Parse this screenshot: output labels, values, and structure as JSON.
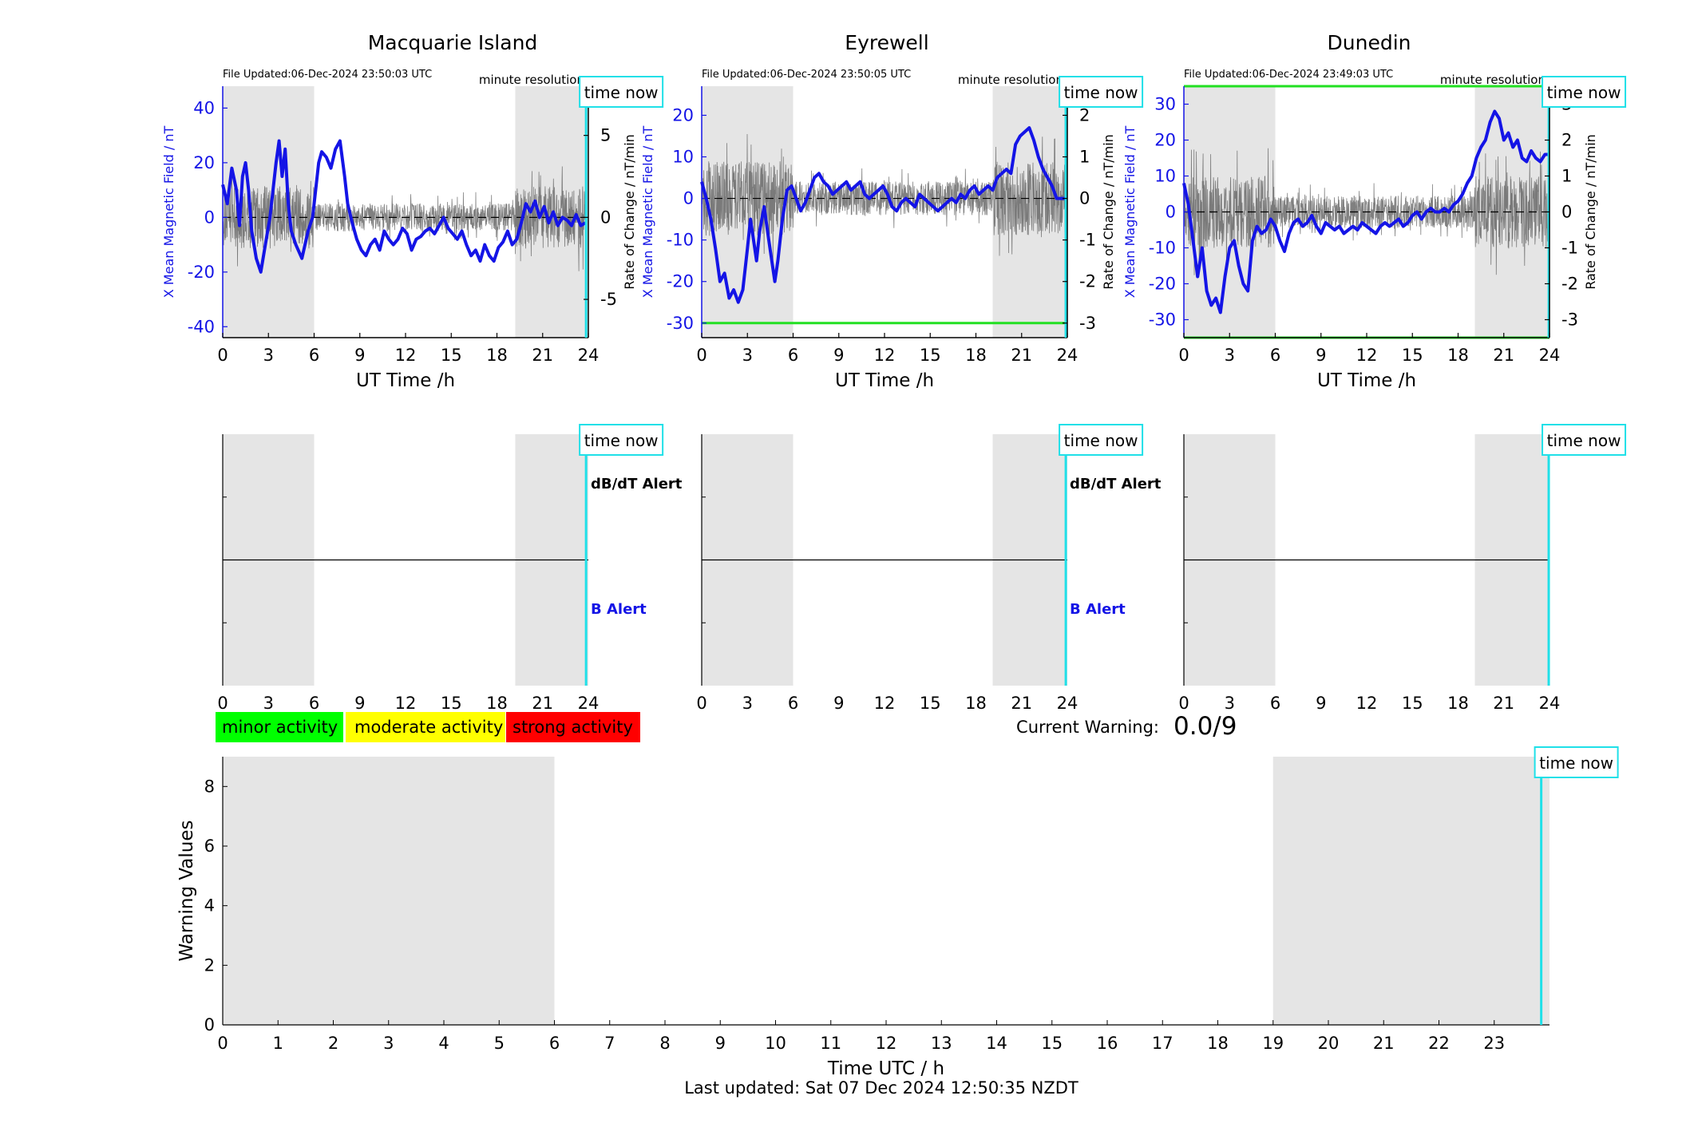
{
  "colors": {
    "field": "#1414e6",
    "rate": "#555555",
    "night": "#e5e5e5",
    "timenow": "#1fe0e8",
    "threshold": "#22e022",
    "minor": "#00ff00",
    "moderate": "#ffff00",
    "strong": "#ff0000",
    "b_alert": "#1414e6"
  },
  "common": {
    "xlabel": "UT Time /h",
    "ylabel_left": "X Mean Magnetic Field / nT",
    "ylabel_right": "Rate of Change / nT/min",
    "resolution": "minute resolution",
    "time_now": "time now",
    "dbdt_alert": "dB/dT Alert",
    "b_alert": "B Alert"
  },
  "stations": [
    {
      "title": "Macquarie Island",
      "file_updated": "File Updated:06-Dec-2024 23:50:03 UTC"
    },
    {
      "title": "Eyrewell",
      "file_updated": "File Updated:06-Dec-2024 23:50:05 UTC"
    },
    {
      "title": "Dunedin",
      "file_updated": "File Updated:06-Dec-2024 23:49:03 UTC"
    }
  ],
  "legend": {
    "minor": "minor activity",
    "moderate": "moderate activity",
    "strong": "strong activity"
  },
  "current_warning": {
    "label": "Current Warning:",
    "value": "0.0/9"
  },
  "footer": {
    "last_updated": "Last updated: Sat 07 Dec 2024 12:50:35 NZDT"
  },
  "chart_data": [
    {
      "type": "line",
      "title": "Macquarie Island",
      "xlabel": "UT Time /h",
      "ylabel": "X Mean Magnetic Field / nT",
      "y2label": "Rate of Change / nT/min",
      "xlim": [
        0,
        24
      ],
      "ylim": [
        -44,
        48
      ],
      "y2lim": [
        -7.333,
        8
      ],
      "xticks": [
        0,
        3,
        6,
        9,
        12,
        15,
        18,
        21,
        24
      ],
      "yticks": [
        -40,
        -20,
        0,
        20,
        40
      ],
      "y2ticks": [
        -5,
        0,
        5
      ],
      "night_bands": [
        [
          0,
          6
        ],
        [
          19.2,
          24
        ]
      ],
      "time_now": 23.85,
      "series": [
        {
          "role": "field",
          "x": [
            0,
            0.3,
            0.6,
            0.9,
            1.1,
            1.3,
            1.5,
            1.7,
            1.9,
            2.2,
            2.5,
            2.8,
            3.1,
            3.3,
            3.5,
            3.7,
            3.9,
            4.1,
            4.3,
            4.5,
            4.8,
            5.2,
            5.6,
            5.9,
            6.1,
            6.3,
            6.5,
            6.8,
            7.1,
            7.4,
            7.7,
            8.0,
            8.2,
            8.5,
            8.8,
            9.1,
            9.4,
            9.7,
            10.0,
            10.3,
            10.6,
            10.9,
            11.2,
            11.5,
            11.8,
            12.1,
            12.4,
            12.7,
            13.0,
            13.3,
            13.6,
            13.9,
            14.2,
            14.5,
            14.8,
            15.1,
            15.4,
            15.7,
            16.0,
            16.3,
            16.6,
            16.9,
            17.2,
            17.5,
            17.8,
            18.1,
            18.4,
            18.7,
            19.0,
            19.3,
            19.6,
            19.9,
            20.2,
            20.5,
            20.8,
            21.1,
            21.4,
            21.7,
            22.0,
            22.3,
            22.6,
            22.9,
            23.2,
            23.5,
            23.8
          ],
          "y": [
            12,
            5,
            18,
            10,
            -3,
            15,
            20,
            10,
            -5,
            -15,
            -20,
            -10,
            0,
            10,
            20,
            28,
            15,
            25,
            5,
            -5,
            -10,
            -15,
            -5,
            0,
            10,
            20,
            24,
            22,
            18,
            25,
            28,
            15,
            5,
            -2,
            -8,
            -12,
            -14,
            -10,
            -8,
            -12,
            -5,
            -8,
            -10,
            -8,
            -4,
            -6,
            -12,
            -8,
            -7,
            -5,
            -4,
            -6,
            -3,
            0,
            -4,
            -6,
            -8,
            -5,
            -10,
            -14,
            -12,
            -16,
            -10,
            -14,
            -16,
            -11,
            -9,
            -5,
            -10,
            -8,
            -2,
            5,
            2,
            6,
            0,
            4,
            -2,
            2,
            -3,
            0,
            -1,
            -3,
            1,
            -3,
            -2
          ]
        },
        {
          "role": "rate",
          "axis": "right",
          "x_range": [
            0,
            23.8
          ],
          "amplitude": 1.9
        }
      ]
    },
    {
      "type": "line",
      "title": "Eyrewell",
      "xlabel": "UT Time /h",
      "ylabel": "X Mean Magnetic Field / nT",
      "y2label": "Rate of Change / nT/min",
      "xlim": [
        0,
        24
      ],
      "ylim": [
        -33.5,
        27
      ],
      "y2lim": [
        -3.35,
        2.7
      ],
      "xticks": [
        0,
        3,
        6,
        9,
        12,
        15,
        18,
        21,
        24
      ],
      "yticks": [
        -30,
        -20,
        -10,
        0,
        10,
        20
      ],
      "y2ticks": [
        -3,
        -2,
        -1,
        0,
        1,
        2
      ],
      "threshold_lines": [
        -30
      ],
      "night_bands": [
        [
          0,
          6
        ],
        [
          19.1,
          24
        ]
      ],
      "time_now": 23.9,
      "series": [
        {
          "role": "field",
          "x": [
            0,
            0.3,
            0.6,
            0.9,
            1.2,
            1.5,
            1.8,
            2.1,
            2.4,
            2.7,
            3.0,
            3.2,
            3.4,
            3.6,
            3.8,
            4.1,
            4.4,
            4.6,
            4.8,
            5.0,
            5.3,
            5.6,
            5.9,
            6.2,
            6.5,
            6.8,
            7.1,
            7.4,
            7.7,
            8.0,
            8.3,
            8.6,
            8.9,
            9.2,
            9.5,
            9.8,
            10.1,
            10.4,
            10.7,
            11.0,
            11.3,
            11.6,
            11.9,
            12.2,
            12.5,
            12.8,
            13.1,
            13.4,
            13.7,
            14.0,
            14.3,
            14.6,
            14.9,
            15.2,
            15.5,
            15.8,
            16.1,
            16.4,
            16.7,
            17.0,
            17.3,
            17.6,
            17.9,
            18.2,
            18.5,
            18.8,
            19.1,
            19.4,
            19.7,
            20.0,
            20.3,
            20.6,
            20.9,
            21.2,
            21.5,
            21.8,
            22.1,
            22.4,
            22.7,
            23.0,
            23.3,
            23.6,
            23.9
          ],
          "y": [
            4,
            0,
            -5,
            -12,
            -20,
            -18,
            -24,
            -22,
            -25,
            -22,
            -12,
            -5,
            -10,
            -15,
            -8,
            -2,
            -10,
            -15,
            -20,
            -15,
            -5,
            2,
            3,
            0,
            -3,
            -1,
            2,
            5,
            6,
            4,
            3,
            1,
            2,
            3,
            4,
            2,
            3,
            4,
            1,
            0,
            1,
            2,
            3,
            1,
            -2,
            -3,
            -1,
            0,
            -1,
            -2,
            1,
            0,
            -1,
            -2,
            -3,
            -2,
            -1,
            0,
            -1,
            1,
            0,
            2,
            3,
            1,
            2,
            3,
            2,
            5,
            6,
            7,
            6,
            13,
            15,
            16,
            17,
            14,
            10,
            7,
            5,
            3,
            0,
            0,
            0
          ]
        },
        {
          "role": "rate",
          "axis": "right",
          "x_range": [
            0,
            23.9
          ],
          "amplitude": 0.9
        }
      ]
    },
    {
      "type": "line",
      "title": "Dunedin",
      "xlabel": "UT Time /h",
      "ylabel": "X Mean Magnetic Field / nT",
      "y2label": "Rate of Change / nT/min",
      "xlim": [
        0,
        24
      ],
      "ylim": [
        -35,
        35
      ],
      "y2lim": [
        -3.5,
        3.5
      ],
      "xticks": [
        0,
        3,
        6,
        9,
        12,
        15,
        18,
        21,
        24
      ],
      "yticks": [
        -30,
        -20,
        -10,
        0,
        10,
        20,
        30
      ],
      "y2ticks": [
        -3,
        -2,
        -1,
        0,
        1,
        2,
        3
      ],
      "threshold_lines": [
        35,
        -35
      ],
      "night_bands": [
        [
          0,
          6
        ],
        [
          19.1,
          24
        ]
      ],
      "time_now": 23.95,
      "series": [
        {
          "role": "field",
          "x": [
            0,
            0.3,
            0.6,
            0.9,
            1.2,
            1.5,
            1.8,
            2.1,
            2.4,
            2.7,
            3.0,
            3.3,
            3.6,
            3.9,
            4.2,
            4.5,
            4.8,
            5.1,
            5.4,
            5.7,
            6.0,
            6.3,
            6.6,
            6.9,
            7.2,
            7.5,
            7.8,
            8.1,
            8.4,
            8.7,
            9.0,
            9.3,
            9.6,
            9.9,
            10.2,
            10.5,
            10.8,
            11.1,
            11.4,
            11.7,
            12.0,
            12.3,
            12.6,
            12.9,
            13.2,
            13.5,
            13.8,
            14.1,
            14.4,
            14.7,
            15.0,
            15.3,
            15.6,
            15.9,
            16.2,
            16.5,
            16.8,
            17.1,
            17.4,
            17.7,
            18.0,
            18.3,
            18.6,
            18.9,
            19.2,
            19.5,
            19.8,
            20.1,
            20.4,
            20.7,
            21.0,
            21.3,
            21.6,
            21.9,
            22.2,
            22.5,
            22.8,
            23.1,
            23.4,
            23.7,
            23.9
          ],
          "y": [
            8,
            2,
            -8,
            -18,
            -10,
            -22,
            -26,
            -24,
            -28,
            -18,
            -10,
            -8,
            -15,
            -20,
            -22,
            -8,
            -4,
            -6,
            -5,
            -2,
            -4,
            -8,
            -11,
            -6,
            -3,
            -2,
            -4,
            -3,
            -1,
            -4,
            -6,
            -3,
            -4,
            -5,
            -4,
            -6,
            -5,
            -4,
            -5,
            -3,
            -4,
            -5,
            -6,
            -4,
            -3,
            -4,
            -3,
            -2,
            -4,
            -3,
            -1,
            0,
            -2,
            0,
            1,
            0,
            0,
            1,
            0,
            2,
            3,
            5,
            8,
            10,
            15,
            18,
            20,
            25,
            28,
            26,
            20,
            22,
            18,
            20,
            15,
            14,
            17,
            15,
            14,
            16,
            16
          ]
        },
        {
          "role": "rate",
          "axis": "right",
          "x_range": [
            0,
            23.9
          ],
          "amplitude": 1.0
        }
      ]
    },
    {
      "type": "line",
      "xlabel": "Time UTC / h",
      "ylabel": "Warning Values",
      "xlim": [
        0,
        24
      ],
      "ylim": [
        0,
        9
      ],
      "xticks": [
        0,
        1,
        2,
        3,
        4,
        5,
        6,
        7,
        8,
        9,
        10,
        11,
        12,
        13,
        14,
        15,
        16,
        17,
        18,
        19,
        20,
        21,
        22,
        23
      ],
      "yticks": [
        0,
        2,
        4,
        6,
        8
      ],
      "night_bands": [
        [
          0,
          6
        ],
        [
          19,
          24
        ]
      ],
      "time_now": 23.85,
      "series": []
    }
  ]
}
